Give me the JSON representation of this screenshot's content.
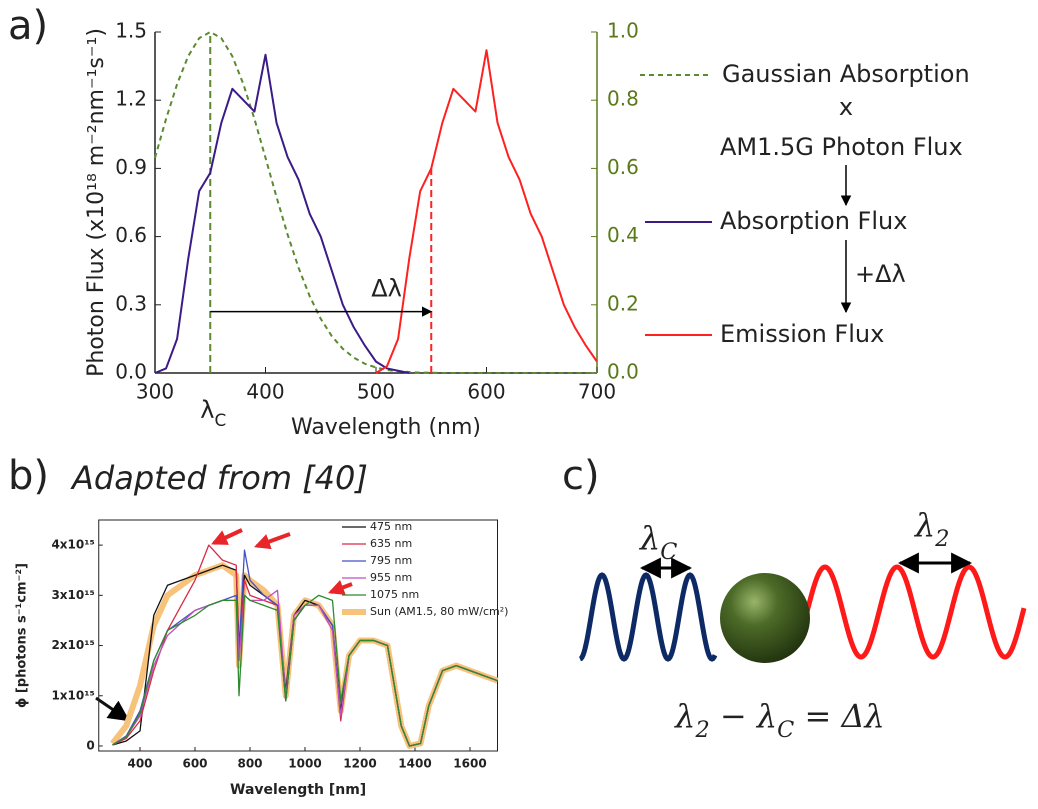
{
  "panels": {
    "a": "a)",
    "b": "b)",
    "c": "c)"
  },
  "chart_data": [
    {
      "type": "line",
      "xlabel": "Wavelength (nm)",
      "ylabel": "Photon Flux (x10¹⁸ m⁻²nm⁻¹s⁻¹)",
      "xlim": [
        300,
        700
      ],
      "xticks": [
        300,
        400,
        500,
        600,
        700
      ],
      "ylim": [
        0,
        1.5
      ],
      "yticks": [
        {
          "value": 0,
          "label": "0.0"
        },
        0.3,
        0.6,
        0.9,
        1.2,
        1.5
      ],
      "y2lim": [
        0,
        1
      ],
      "y2ticks": [
        {
          "value": 0,
          "label": "0.0"
        },
        0.2,
        0.4,
        0.6,
        0.8,
        {
          "value": 1,
          "label": "1.0"
        }
      ],
      "y2color": "#5a7a1a",
      "x": [
        300,
        310,
        320,
        330,
        340,
        350,
        360,
        370,
        380,
        390,
        400,
        410,
        420,
        430,
        440,
        450,
        460,
        470,
        480,
        490,
        500,
        510,
        520,
        530,
        540,
        550,
        560,
        570,
        580,
        590,
        600,
        610,
        620,
        630,
        640,
        650,
        660,
        670,
        680,
        690,
        700
      ],
      "series": [
        {
          "name": "Gaussian Absorption",
          "color": "#5b8a32",
          "dashed": true,
          "axis": "y2",
          "values": [
            0.631,
            0.745,
            0.847,
            0.929,
            0.982,
            1,
            0.982,
            0.929,
            0.847,
            0.745,
            0.631,
            0.516,
            0.406,
            0.308,
            0.225,
            0.159,
            0.108,
            0.071,
            0.045,
            0.027,
            0.016,
            0.009,
            0.005,
            0.003,
            0.001,
            0.001,
            0,
            0,
            0,
            0,
            0,
            0,
            0,
            0,
            0,
            0,
            0,
            0,
            0,
            0,
            0
          ]
        },
        {
          "name": "Absorption Flux",
          "color": "#3b1b87",
          "values": [
            0,
            0.02,
            0.15,
            0.5,
            0.8,
            0.88,
            1.1,
            1.25,
            1.2,
            1.15,
            1.4,
            1.1,
            0.95,
            0.85,
            0.7,
            0.6,
            0.45,
            0.3,
            0.2,
            0.12,
            0.05,
            0.02,
            0.01,
            0,
            null,
            null,
            null,
            null,
            null,
            null,
            null,
            null,
            null,
            null,
            null,
            null,
            null,
            null,
            null,
            null,
            null
          ]
        },
        {
          "name": "Emission Flux",
          "color": "#ff2020",
          "values": [
            null,
            null,
            null,
            null,
            null,
            null,
            null,
            null,
            null,
            null,
            null,
            null,
            null,
            null,
            null,
            null,
            null,
            null,
            null,
            null,
            0,
            0.03,
            0.15,
            0.5,
            0.8,
            0.9,
            1.1,
            1.25,
            1.2,
            1.15,
            1.42,
            1.1,
            0.95,
            0.85,
            0.7,
            0.6,
            0.45,
            0.3,
            0.2,
            0.12,
            0.05
          ]
        }
      ],
      "markers": [
        {
          "x": 350,
          "y": 1.5,
          "color": "#5b8a32"
        },
        {
          "x": 550,
          "y": 0.9,
          "color": "#ff2020"
        }
      ],
      "shift_arrow": {
        "from": 350,
        "to": 550,
        "y": 0.27,
        "label": "Δλ"
      },
      "lambda_c": [
        "λ",
        "C"
      ],
      "flow": {
        "times": "x",
        "source": "AM1.5G Photon Flux",
        "shift": "+Δλ"
      }
    },
    {
      "type": "line",
      "title": "Adapted from [40]",
      "xlabel": "Wavelength [nm]",
      "ylabel": "ϕ [photons s⁻¹cm⁻²]",
      "xlim": [
        250,
        1700
      ],
      "xticks": [
        400,
        600,
        800,
        1000,
        1200,
        1400,
        1600
      ],
      "ylim": [
        -100000000000000.0,
        4500000000000000.0
      ],
      "yticks": [
        0,
        {
          "value": 1000000000000000.0,
          "label": "1x10¹⁵"
        },
        {
          "value": 2000000000000000.0,
          "label": "2x10¹⁵"
        },
        {
          "value": 3000000000000000.0,
          "label": "3x10¹⁵"
        },
        {
          "value": 4000000000000000.0,
          "label": "4x10¹⁵"
        }
      ],
      "x": [
        300,
        350,
        400,
        450,
        500,
        600,
        650,
        700,
        750,
        760,
        780,
        800,
        850,
        900,
        930,
        960,
        1000,
        1050,
        1100,
        1130,
        1160,
        1200,
        1250,
        1300,
        1350,
        1380,
        1420,
        1450,
        1500,
        1550,
        1600,
        1700
      ],
      "series": [
        {
          "name": "475 nm",
          "color": "#111111",
          "linewidth": 1.3,
          "values": [
            20000000000000.0,
            100000000000000.0,
            300000000000000.0,
            2600000000000000.0,
            3200000000000000.0,
            3400000000000000.0,
            3500000000000000.0,
            3600000000000000.0,
            3500000000000000.0,
            2000000000000000.0,
            3400000000000000.0,
            3200000000000000.0,
            3000000000000000.0,
            2800000000000000.0,
            1100000000000000.0,
            2600000000000000.0,
            2900000000000000.0,
            2800000000000000.0,
            2400000000000000.0,
            700000000000000.0,
            1800000000000000.0,
            2100000000000000.0,
            2100000000000000.0,
            2000000000000000.0,
            400000000000000.0,
            0,
            50000000000000.0,
            800000000000000.0,
            1500000000000000.0,
            1600000000000000.0,
            1500000000000000.0,
            1300000000000000.0
          ]
        },
        {
          "name": "635 nm",
          "color": "#d62b45",
          "linewidth": 1.3,
          "values": [
            20000000000000.0,
            150000000000000.0,
            500000000000000.0,
            1500000000000000.0,
            2300000000000000.0,
            3300000000000000.0,
            4000000000000000.0,
            3700000000000000.0,
            3600000000000000.0,
            1800000000000000.0,
            3300000000000000.0,
            3000000000000000.0,
            2900000000000000.0,
            2800000000000000.0,
            900000000000000.0,
            2500000000000000.0,
            2800000000000000.0,
            2800000000000000.0,
            2400000000000000.0,
            500000000000000.0,
            1800000000000000.0,
            2100000000000000.0,
            2100000000000000.0,
            2000000000000000.0,
            400000000000000.0,
            0,
            50000000000000.0,
            800000000000000.0,
            1500000000000000.0,
            1600000000000000.0,
            1500000000000000.0,
            1300000000000000.0
          ]
        },
        {
          "name": "795 nm",
          "color": "#4450c8",
          "linewidth": 1.3,
          "values": [
            20000000000000.0,
            200000000000000.0,
            700000000000000.0,
            1700000000000000.0,
            2300000000000000.0,
            2700000000000000.0,
            2800000000000000.0,
            2900000000000000.0,
            3000000000000000.0,
            1900000000000000.0,
            3900000000000000.0,
            3300000000000000.0,
            3000000000000000.0,
            2800000000000000.0,
            900000000000000.0,
            2500000000000000.0,
            2800000000000000.0,
            2800000000000000.0,
            2400000000000000.0,
            600000000000000.0,
            1800000000000000.0,
            2100000000000000.0,
            2100000000000000.0,
            2000000000000000.0,
            400000000000000.0,
            0,
            50000000000000.0,
            800000000000000.0,
            1500000000000000.0,
            1600000000000000.0,
            1500000000000000.0,
            1300000000000000.0
          ]
        },
        {
          "name": "955 nm",
          "color": "#c04fc0",
          "linewidth": 1.3,
          "values": [
            20000000000000.0,
            180000000000000.0,
            600000000000000.0,
            1600000000000000.0,
            2200000000000000.0,
            2700000000000000.0,
            2800000000000000.0,
            2900000000000000.0,
            2900000000000000.0,
            1700000000000000.0,
            3000000000000000.0,
            2900000000000000.0,
            2900000000000000.0,
            3100000000000000.0,
            1000000000000000.0,
            2600000000000000.0,
            2800000000000000.0,
            2800000000000000.0,
            2300000000000000.0,
            600000000000000.0,
            1800000000000000.0,
            2100000000000000.0,
            2100000000000000.0,
            2000000000000000.0,
            400000000000000.0,
            0,
            50000000000000.0,
            800000000000000.0,
            1500000000000000.0,
            1600000000000000.0,
            1500000000000000.0,
            1300000000000000.0
          ]
        },
        {
          "name": "1075 nm",
          "color": "#2d8a2d",
          "linewidth": 1.3,
          "values": [
            20000000000000.0,
            180000000000000.0,
            650000000000000.0,
            1700000000000000.0,
            2300000000000000.0,
            2600000000000000.0,
            2800000000000000.0,
            2900000000000000.0,
            2900000000000000.0,
            1000000000000000.0,
            3000000000000000.0,
            2900000000000000.0,
            2800000000000000.0,
            2700000000000000.0,
            900000000000000.0,
            2500000000000000.0,
            2800000000000000.0,
            3000000000000000.0,
            2900000000000000.0,
            900000000000000.0,
            1800000000000000.0,
            2100000000000000.0,
            2100000000000000.0,
            2000000000000000.0,
            400000000000000.0,
            0,
            50000000000000.0,
            800000000000000.0,
            1500000000000000.0,
            1600000000000000.0,
            1500000000000000.0,
            1300000000000000.0
          ]
        },
        {
          "name": "Sun (AM1.5, 80 mW/cm²)",
          "color": "#f7c27a",
          "linewidth": 6,
          "values": [
            50000000000000.0,
            400000000000000.0,
            1200000000000000.0,
            2400000000000000.0,
            3000000000000000.0,
            3400000000000000.0,
            3500000000000000.0,
            3600000000000000.0,
            3400000000000000.0,
            1600000000000000.0,
            3400000000000000.0,
            3300000000000000.0,
            3100000000000000.0,
            2800000000000000.0,
            1000000000000000.0,
            2600000000000000.0,
            2900000000000000.0,
            2800000000000000.0,
            2400000000000000.0,
            700000000000000.0,
            1800000000000000.0,
            2100000000000000.0,
            2100000000000000.0,
            2000000000000000.0,
            400000000000000.0,
            0,
            50000000000000.0,
            800000000000000.0,
            1500000000000000.0,
            1600000000000000.0,
            1500000000000000.0,
            1300000000000000.0
          ]
        }
      ],
      "legend": "upper right"
    }
  ],
  "diagram": {
    "lambda_c": [
      "λ",
      "C"
    ],
    "lambda_2": [
      "λ",
      "2"
    ],
    "equation": [
      "λ",
      "2",
      " − λ",
      "C",
      " = Δλ"
    ]
  }
}
